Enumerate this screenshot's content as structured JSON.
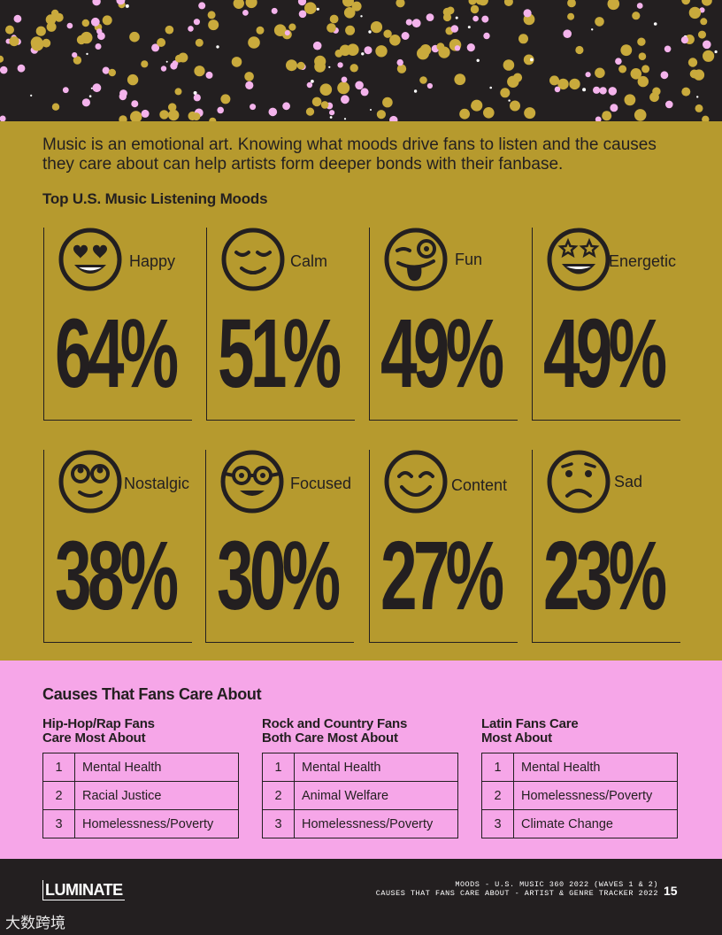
{
  "intro": "Music is an emotional art. Knowing what moods drive fans to listen and the causes they care about can help artists form deeper bonds with their fanbase.",
  "moods_title": "Top U.S. Music Listening Moods",
  "moods": [
    {
      "label": "Happy",
      "pct": "64%",
      "icon": "heart-eyes-face-icon"
    },
    {
      "label": "Calm",
      "pct": "51%",
      "icon": "calm-face-icon"
    },
    {
      "label": "Fun",
      "pct": "49%",
      "icon": "tongue-wink-face-icon"
    },
    {
      "label": "Energetic",
      "pct": "49%",
      "icon": "star-eyes-face-icon"
    },
    {
      "label": "Nostalgic",
      "pct": "38%",
      "icon": "rolling-eyes-face-icon"
    },
    {
      "label": "Focused",
      "pct": "30%",
      "icon": "glasses-face-icon"
    },
    {
      "label": "Content",
      "pct": "27%",
      "icon": "content-face-icon"
    },
    {
      "label": "Sad",
      "pct": "23%",
      "icon": "sad-face-icon"
    }
  ],
  "causes_title": "Causes That Fans Care About",
  "causes": [
    {
      "title_line1": "Hip-Hop/Rap Fans",
      "title_line2": "Care Most About",
      "items": [
        [
          "1",
          "Mental Health"
        ],
        [
          "2",
          "Racial Justice"
        ],
        [
          "3",
          "Homelessness/Poverty"
        ]
      ]
    },
    {
      "title_line1": "Rock and Country Fans",
      "title_line2": "Both Care Most About",
      "items": [
        [
          "1",
          "Mental Health"
        ],
        [
          "2",
          "Animal Welfare"
        ],
        [
          "3",
          "Homelessness/Poverty"
        ]
      ]
    },
    {
      "title_line1": "Latin Fans Care",
      "title_line2": "Most About",
      "items": [
        [
          "1",
          "Mental Health"
        ],
        [
          "2",
          "Homelessness/Poverty"
        ],
        [
          "3",
          "Climate Change"
        ]
      ]
    }
  ],
  "footer": {
    "logo": "LUMINATE",
    "line1": "MOODS - U.S. MUSIC 360 2022 (WAVES 1 & 2)",
    "line2": "CAUSES THAT FANS CARE ABOUT - ARTIST & GENRE TRACKER 2022",
    "page": "15",
    "watermark": "大数跨境"
  },
  "colors": {
    "gold": "#b69a2e",
    "pink": "#f6a6e8",
    "dark": "#231f20",
    "confetti_gold": "#c9aa3c",
    "confetti_pink": "#f4b3ec"
  }
}
